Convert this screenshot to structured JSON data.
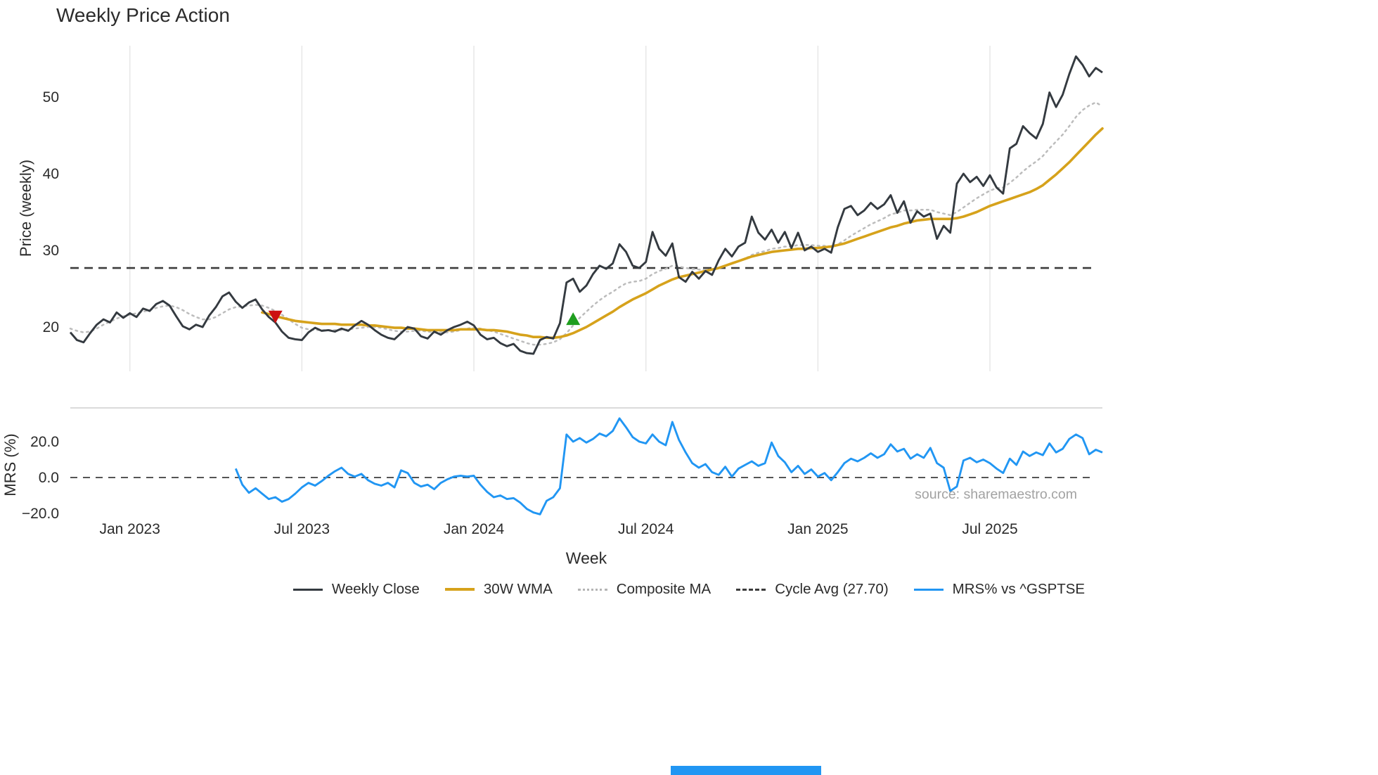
{
  "title": "Weekly Price Action",
  "axes": {
    "price_label": "Price (weekly)",
    "mrs_label": "MRS (%)",
    "x_label": "Week"
  },
  "legend": {
    "weekly_close": "Weekly Close",
    "wma": "30W WMA",
    "composite": "Composite MA",
    "cycle": "Cycle Avg (27.70)",
    "mrs": "MRS% vs ^GSPTSE"
  },
  "source": "source: sharemaestro.com",
  "colors": {
    "close": "#343a40",
    "wma": "#d6a21b",
    "composite": "#bcbcbc",
    "cycle": "#3c3c3c",
    "mrs": "#2196f3",
    "buy": "#1f9e1f",
    "sell": "#cc1111",
    "accent_bar": "#2196f3",
    "grid": "#e7e7e7",
    "panel_border": "#cfcfcf",
    "tick_text": "#2b2b2b"
  },
  "chart_data": {
    "type": "line",
    "title": "Weekly Price Action",
    "xlabel": "Week",
    "ylabel_top": "Price (weekly)",
    "ylabel_bottom": "MRS (%)",
    "cycle_avg": 27.7,
    "price_ticks": [
      20,
      30,
      40,
      50
    ],
    "price_ylim": [
      14,
      57
    ],
    "mrs_ylim": [
      -25,
      38
    ],
    "mrs_ticks": [
      {
        "value": -20,
        "label": "−20.0"
      },
      {
        "value": 0,
        "label": "0.0"
      },
      {
        "value": 20,
        "label": "20.0"
      }
    ],
    "x_ticks": [
      {
        "index": 9,
        "label": "Jan 2023"
      },
      {
        "index": 35,
        "label": "Jul 2023"
      },
      {
        "index": 61,
        "label": "Jan 2024"
      },
      {
        "index": 87,
        "label": "Jul 2024"
      },
      {
        "index": 113,
        "label": "Jan 2025"
      },
      {
        "index": 139,
        "label": "Jul 2025"
      }
    ],
    "markers": [
      {
        "type": "sell",
        "index": 31,
        "price": 21.4
      },
      {
        "type": "buy",
        "index": 76,
        "price": 21.0
      }
    ],
    "series": {
      "weekly_close": [
        19.3,
        18.3,
        18.0,
        19.2,
        20.3,
        21.0,
        20.6,
        21.9,
        21.2,
        21.8,
        21.3,
        22.4,
        22.1,
        23.0,
        23.4,
        22.8,
        21.4,
        20.1,
        19.7,
        20.3,
        20.0,
        21.5,
        22.6,
        24.0,
        24.5,
        23.3,
        22.5,
        23.2,
        23.6,
        22.3,
        21.3,
        20.6,
        19.4,
        18.6,
        18.4,
        18.3,
        19.3,
        19.9,
        19.5,
        19.6,
        19.4,
        19.8,
        19.5,
        20.2,
        20.8,
        20.3,
        19.6,
        19.0,
        18.6,
        18.4,
        19.2,
        20.0,
        19.8,
        18.8,
        18.5,
        19.4,
        19.0,
        19.6,
        20.0,
        20.3,
        20.7,
        20.2,
        19.0,
        18.4,
        18.6,
        17.9,
        17.5,
        17.8,
        16.9,
        16.6,
        16.5,
        18.3,
        18.7,
        18.5,
        20.5,
        25.8,
        26.3,
        24.6,
        25.4,
        26.9,
        28.0,
        27.6,
        28.3,
        30.8,
        29.8,
        28.0,
        27.7,
        28.5,
        32.4,
        30.2,
        29.3,
        30.9,
        26.5,
        25.9,
        27.2,
        26.3,
        27.3,
        26.8,
        28.7,
        30.2,
        29.2,
        30.5,
        31.0,
        34.4,
        32.3,
        31.4,
        32.7,
        31.0,
        32.4,
        30.3,
        32.3,
        30.0,
        30.5,
        29.8,
        30.2,
        29.7,
        33.0,
        35.4,
        35.8,
        34.6,
        35.2,
        36.2,
        35.4,
        36.0,
        37.2,
        34.9,
        36.4,
        33.6,
        35.1,
        34.4,
        34.8,
        31.5,
        33.2,
        32.3,
        38.7,
        40.0,
        38.9,
        39.6,
        38.4,
        39.8,
        38.2,
        37.4,
        43.3,
        43.9,
        46.2,
        45.3,
        44.6,
        46.5,
        50.6,
        48.7,
        50.3,
        53.0,
        55.3,
        54.2,
        52.7,
        53.8,
        53.2
      ],
      "wma_30w": [
        null,
        null,
        null,
        null,
        null,
        null,
        null,
        null,
        null,
        null,
        null,
        null,
        null,
        null,
        null,
        null,
        null,
        null,
        null,
        null,
        null,
        null,
        null,
        null,
        null,
        null,
        null,
        null,
        null,
        21.9,
        21.7,
        21.4,
        21.2,
        21.0,
        20.8,
        20.7,
        20.6,
        20.5,
        20.4,
        20.4,
        20.4,
        20.3,
        20.3,
        20.3,
        20.3,
        20.2,
        20.2,
        20.1,
        20.0,
        19.9,
        19.9,
        19.8,
        19.8,
        19.7,
        19.6,
        19.6,
        19.6,
        19.6,
        19.6,
        19.7,
        19.7,
        19.7,
        19.7,
        19.6,
        19.6,
        19.5,
        19.4,
        19.2,
        19.0,
        18.9,
        18.7,
        18.7,
        18.6,
        18.6,
        18.7,
        18.9,
        19.2,
        19.6,
        20.0,
        20.5,
        21.0,
        21.5,
        22.0,
        22.6,
        23.1,
        23.6,
        24.0,
        24.4,
        24.9,
        25.4,
        25.8,
        26.2,
        26.5,
        26.7,
        26.9,
        27.1,
        27.3,
        27.5,
        27.7,
        28.0,
        28.3,
        28.6,
        28.9,
        29.2,
        29.4,
        29.6,
        29.8,
        29.9,
        30.0,
        30.1,
        30.2,
        30.2,
        30.3,
        30.3,
        30.4,
        30.5,
        30.7,
        30.9,
        31.2,
        31.5,
        31.8,
        32.1,
        32.4,
        32.7,
        33.0,
        33.2,
        33.5,
        33.7,
        33.9,
        34.0,
        34.1,
        34.1,
        34.1,
        34.1,
        34.2,
        34.4,
        34.7,
        35.0,
        35.4,
        35.8,
        36.1,
        36.4,
        36.7,
        37.0,
        37.3,
        37.6,
        38.0,
        38.5,
        39.2,
        39.9,
        40.7,
        41.5,
        42.4,
        43.3,
        44.2,
        45.1,
        45.9
      ],
      "composite_ma": [
        19.8,
        19.5,
        19.3,
        19.4,
        19.8,
        20.3,
        20.7,
        21.1,
        21.4,
        21.6,
        21.8,
        22.0,
        22.2,
        22.5,
        22.7,
        22.8,
        22.6,
        22.2,
        21.7,
        21.3,
        21.0,
        21.0,
        21.3,
        21.8,
        22.3,
        22.6,
        22.7,
        22.8,
        22.9,
        22.8,
        22.5,
        22.1,
        21.6,
        21.0,
        20.4,
        19.9,
        19.7,
        19.6,
        19.6,
        19.6,
        19.6,
        19.6,
        19.7,
        19.8,
        19.9,
        20.0,
        20.0,
        19.9,
        19.7,
        19.5,
        19.4,
        19.4,
        19.5,
        19.5,
        19.4,
        19.3,
        19.3,
        19.3,
        19.4,
        19.6,
        19.8,
        19.9,
        19.8,
        19.6,
        19.4,
        19.1,
        18.8,
        18.5,
        18.2,
        17.9,
        17.7,
        17.7,
        17.8,
        18.0,
        18.4,
        19.2,
        20.2,
        21.2,
        22.0,
        22.8,
        23.5,
        24.1,
        24.6,
        25.2,
        25.7,
        25.9,
        26.0,
        26.3,
        26.9,
        27.3,
        27.6,
        28.0,
        27.9,
        27.7,
        27.6,
        27.5,
        27.5,
        27.5,
        27.7,
        28.0,
        28.3,
        28.6,
        28.9,
        29.4,
        29.7,
        29.9,
        30.2,
        30.3,
        30.5,
        30.5,
        30.7,
        30.7,
        30.7,
        30.6,
        30.6,
        30.5,
        30.8,
        31.3,
        31.9,
        32.4,
        32.9,
        33.4,
        33.8,
        34.2,
        34.7,
        34.9,
        35.2,
        35.2,
        35.3,
        35.3,
        35.3,
        35.0,
        34.8,
        34.6,
        35.0,
        35.6,
        36.2,
        36.8,
        37.3,
        37.8,
        38.1,
        38.2,
        38.8,
        39.5,
        40.3,
        41.0,
        41.6,
        42.3,
        43.3,
        44.2,
        45.1,
        46.2,
        47.4,
        48.3,
        48.9,
        49.3,
        48.8
      ],
      "mrs_pct": [
        null,
        null,
        null,
        null,
        null,
        null,
        null,
        null,
        null,
        null,
        null,
        null,
        null,
        null,
        null,
        null,
        null,
        null,
        null,
        null,
        null,
        null,
        null,
        null,
        null,
        5.0,
        -4.0,
        -8.5,
        -6.0,
        -9.0,
        -12.0,
        -11.0,
        -13.5,
        -12.0,
        -9.0,
        -5.5,
        -3.0,
        -4.5,
        -2.0,
        1.0,
        3.5,
        5.5,
        2.0,
        0.5,
        2.0,
        -1.5,
        -3.5,
        -4.5,
        -3.0,
        -5.5,
        4.0,
        2.5,
        -3.0,
        -5.0,
        -4.0,
        -6.5,
        -3.0,
        -1.0,
        0.5,
        1.0,
        0.5,
        1.0,
        -4.0,
        -8.0,
        -11.0,
        -10.0,
        -12.0,
        -11.5,
        -14.0,
        -17.5,
        -19.5,
        -20.5,
        -13.0,
        -11.0,
        -6.0,
        24.0,
        20.0,
        22.0,
        19.5,
        21.5,
        24.5,
        23.0,
        26.0,
        33.0,
        28.0,
        22.5,
        20.0,
        19.0,
        24.0,
        20.0,
        18.0,
        31.0,
        21.0,
        14.0,
        8.0,
        5.5,
        7.5,
        3.0,
        1.5,
        6.0,
        0.5,
        5.0,
        7.0,
        9.0,
        6.5,
        8.0,
        19.5,
        12.0,
        8.5,
        3.0,
        6.5,
        2.0,
        4.5,
        0.5,
        2.5,
        -1.5,
        3.0,
        8.0,
        10.5,
        9.0,
        11.0,
        13.5,
        11.0,
        13.0,
        18.5,
        14.5,
        16.0,
        10.5,
        13.0,
        11.0,
        16.5,
        8.0,
        5.5,
        -7.5,
        -5.0,
        9.5,
        11.0,
        8.5,
        10.0,
        8.0,
        5.0,
        2.5,
        10.5,
        7.0,
        14.5,
        12.0,
        14.0,
        12.5,
        19.0,
        14.0,
        16.0,
        21.5,
        24.0,
        22.0,
        13.0,
        15.5,
        14.0
      ]
    },
    "legend_entries": [
      "Weekly Close",
      "30W WMA",
      "Composite MA",
      "Cycle Avg (27.70)",
      "MRS% vs ^GSPTSE"
    ],
    "grid": "vertical-light",
    "legend_position": "bottom-center"
  }
}
